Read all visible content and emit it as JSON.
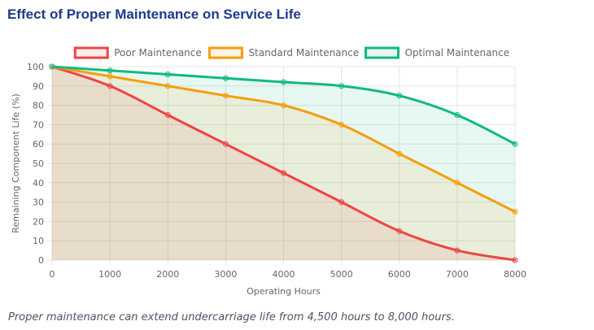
{
  "title": "Effect of Proper Maintenance on Service Life",
  "caption": "Proper maintenance can extend undercarriage life from 4,500 hours to 8,000 hours.",
  "chart_data": {
    "type": "line",
    "xlabel": "Operating Hours",
    "ylabel": "Remaining Component Life (%)",
    "x": [
      0,
      1000,
      2000,
      3000,
      4000,
      5000,
      6000,
      7000,
      8000
    ],
    "xlim": [
      0,
      8000
    ],
    "ylim": [
      0,
      100
    ],
    "x_ticks": [
      0,
      1000,
      2000,
      3000,
      4000,
      5000,
      6000,
      7000,
      8000
    ],
    "y_ticks": [
      0,
      10,
      20,
      30,
      40,
      50,
      60,
      70,
      80,
      90,
      100
    ],
    "grid": true,
    "filled": true,
    "legend_position": "top",
    "series": [
      {
        "name": "Poor Maintenance",
        "color": "#ef4444",
        "values": [
          100,
          90,
          75,
          60,
          45,
          30,
          15,
          5,
          0
        ]
      },
      {
        "name": "Standard Maintenance",
        "color": "#f59e0b",
        "values": [
          100,
          95,
          90,
          85,
          80,
          70,
          55,
          40,
          25
        ]
      },
      {
        "name": "Optimal Maintenance",
        "color": "#10b981",
        "values": [
          100,
          98,
          96,
          94,
          92,
          90,
          85,
          75,
          60
        ]
      }
    ]
  }
}
